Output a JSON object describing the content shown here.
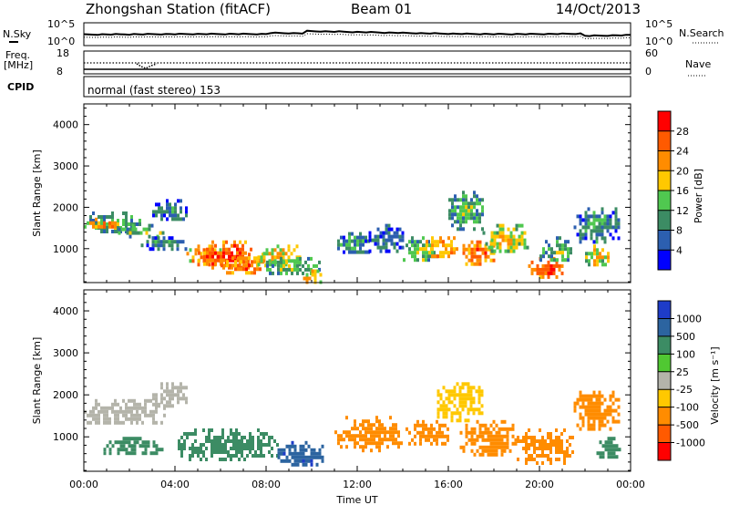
{
  "header": {
    "station": "Zhongshan Station (fitACF)",
    "beam": "Beam 01",
    "date": "14/Oct/2013"
  },
  "sky_panel": {
    "left_label": "N.Sky",
    "right_label": "N.Search",
    "left_ticks": [
      "10^5",
      "10^0"
    ],
    "right_ticks": [
      "10^5",
      "10^0"
    ]
  },
  "freq_panel": {
    "left_label_1": "Freq.",
    "left_label_2": "[MHz]",
    "right_label": "Nave",
    "left_ticks": [
      "18",
      "8"
    ],
    "right_ticks": [
      "60",
      "0"
    ]
  },
  "cpid_panel": {
    "label": "CPID",
    "text": "normal (fast stereo) 153"
  },
  "power_colorbar": {
    "label": "Power [dB]",
    "ticks": [
      "28",
      "24",
      "20",
      "16",
      "12",
      "8",
      "4"
    ],
    "colors": [
      "#ff0000",
      "#ff5a00",
      "#ff8c00",
      "#ffc800",
      "#50c850",
      "#3c8c64",
      "#2c5fb0",
      "#0000ff"
    ]
  },
  "velocity_colorbar": {
    "label": "Velocity [m s⁻¹]",
    "ticks": [
      "1000",
      "500",
      "100",
      "25",
      "-25",
      "-100",
      "-500",
      "-1000"
    ],
    "colors": [
      "#1e3cc8",
      "#2c64a0",
      "#3c8c64",
      "#50c832",
      "#b4b4aa",
      "#ffc800",
      "#ff8c00",
      "#ff5a00",
      "#ff0000"
    ]
  },
  "chart_data": [
    {
      "type": "heatmap",
      "title": "Power",
      "xlabel": "Time UT",
      "ylabel": "Slant Range [km]",
      "xlim": [
        "00:00",
        "24:00"
      ],
      "ylim": [
        180,
        4500
      ],
      "x_ticks": [
        "00:00",
        "04:00",
        "08:00",
        "12:00",
        "16:00",
        "20:00",
        "00:00"
      ],
      "y_ticks": [
        "1000",
        "2000",
        "3000",
        "4000"
      ],
      "color_range": [
        0,
        30
      ],
      "blobs": [
        {
          "t": [
            0.0,
            2.5
          ],
          "r": [
            1400,
            1900
          ],
          "v": 12
        },
        {
          "t": [
            0.0,
            1.5
          ],
          "r": [
            1500,
            1750
          ],
          "v": 22
        },
        {
          "t": [
            1.5,
            3.5
          ],
          "r": [
            1300,
            1600
          ],
          "v": 14
        },
        {
          "t": [
            2.5,
            4.5
          ],
          "r": [
            1000,
            1300
          ],
          "v": 10
        },
        {
          "t": [
            3.0,
            4.5
          ],
          "r": [
            1700,
            2200
          ],
          "v": 8
        },
        {
          "t": [
            4.5,
            6.0
          ],
          "r": [
            600,
            1100
          ],
          "v": 22
        },
        {
          "t": [
            5.0,
            7.5
          ],
          "r": [
            500,
            1200
          ],
          "v": 27
        },
        {
          "t": [
            6.0,
            8.0
          ],
          "r": [
            400,
            900
          ],
          "v": 24
        },
        {
          "t": [
            7.5,
            9.5
          ],
          "r": [
            600,
            1100
          ],
          "v": 18
        },
        {
          "t": [
            8.0,
            10.5
          ],
          "r": [
            400,
            800
          ],
          "v": 14
        },
        {
          "t": [
            9.5,
            10.5
          ],
          "r": [
            200,
            500
          ],
          "v": 20
        },
        {
          "t": [
            11.0,
            12.5
          ],
          "r": [
            900,
            1400
          ],
          "v": 10
        },
        {
          "t": [
            12.5,
            14.0
          ],
          "r": [
            900,
            1600
          ],
          "v": 8
        },
        {
          "t": [
            14.0,
            15.5
          ],
          "r": [
            700,
            1300
          ],
          "v": 14
        },
        {
          "t": [
            15.0,
            16.5
          ],
          "r": [
            800,
            1300
          ],
          "v": 22
        },
        {
          "t": [
            16.0,
            17.5
          ],
          "r": [
            1500,
            2400
          ],
          "v": 12
        },
        {
          "t": [
            16.5,
            18.0
          ],
          "r": [
            600,
            1200
          ],
          "v": 24
        },
        {
          "t": [
            17.5,
            19.5
          ],
          "r": [
            900,
            1600
          ],
          "v": 16
        },
        {
          "t": [
            19.5,
            21.0
          ],
          "r": [
            300,
            800
          ],
          "v": 26
        },
        {
          "t": [
            20.0,
            21.5
          ],
          "r": [
            700,
            1300
          ],
          "v": 12
        },
        {
          "t": [
            21.5,
            23.5
          ],
          "r": [
            1200,
            2000
          ],
          "v": 10
        },
        {
          "t": [
            22.0,
            23.0
          ],
          "r": [
            600,
            1100
          ],
          "v": 18
        }
      ]
    },
    {
      "type": "heatmap",
      "title": "Velocity",
      "xlabel": "Time UT",
      "ylabel": "Slant Range [km]",
      "xlim": [
        "00:00",
        "24:00"
      ],
      "ylim": [
        180,
        4500
      ],
      "x_ticks": [
        "00:00",
        "04:00",
        "08:00",
        "12:00",
        "16:00",
        "20:00",
        "00:00"
      ],
      "y_ticks": [
        "1000",
        "2000",
        "3000",
        "4000"
      ],
      "color_range": [
        -1000,
        1000
      ],
      "blobs": [
        {
          "t": [
            0.0,
            3.5
          ],
          "r": [
            1300,
            1900
          ],
          "v": 0
        },
        {
          "t": [
            3.0,
            4.5
          ],
          "r": [
            1700,
            2300
          ],
          "v": 0
        },
        {
          "t": [
            0.5,
            3.5
          ],
          "r": [
            600,
            1000
          ],
          "v": 200
        },
        {
          "t": [
            4.0,
            8.5
          ],
          "r": [
            500,
            1200
          ],
          "v": 200
        },
        {
          "t": [
            8.5,
            10.5
          ],
          "r": [
            300,
            900
          ],
          "v": 800
        },
        {
          "t": [
            11.0,
            14.0
          ],
          "r": [
            700,
            1500
          ],
          "v": -300
        },
        {
          "t": [
            14.0,
            16.0
          ],
          "r": [
            800,
            1400
          ],
          "v": -300
        },
        {
          "t": [
            15.5,
            17.5
          ],
          "r": [
            1400,
            2300
          ],
          "v": -60
        },
        {
          "t": [
            16.5,
            19.0
          ],
          "r": [
            600,
            1400
          ],
          "v": -300
        },
        {
          "t": [
            19.0,
            21.5
          ],
          "r": [
            400,
            1200
          ],
          "v": -300
        },
        {
          "t": [
            21.5,
            23.5
          ],
          "r": [
            1200,
            2100
          ],
          "v": -300
        },
        {
          "t": [
            22.5,
            23.5
          ],
          "r": [
            500,
            1000
          ],
          "v": 200
        }
      ]
    }
  ]
}
